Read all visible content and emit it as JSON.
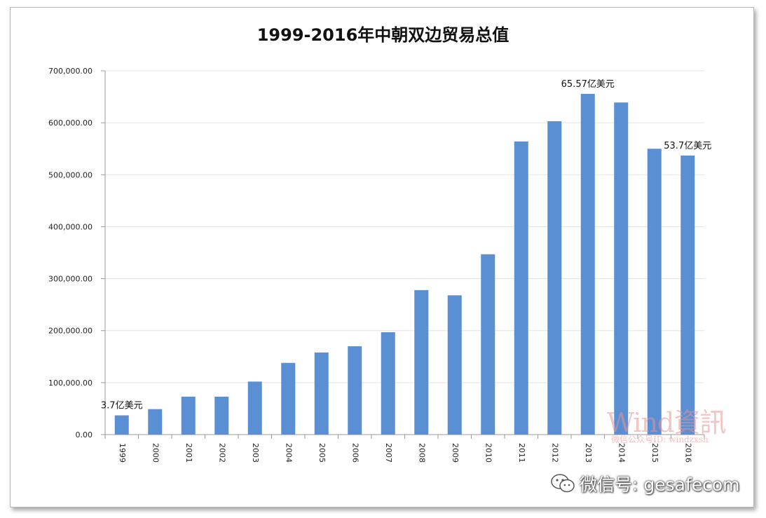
{
  "chart_data": {
    "type": "bar",
    "title": "1999-2016年中朝双边贸易总值",
    "categories": [
      "1999",
      "2000",
      "2001",
      "2002",
      "2003",
      "2004",
      "2005",
      "2006",
      "2007",
      "2008",
      "2009",
      "2010",
      "2011",
      "2012",
      "2013",
      "2014",
      "2015",
      "2016"
    ],
    "values": [
      37000,
      49000,
      73000,
      73000,
      102000,
      138000,
      158000,
      170000,
      197000,
      278000,
      268000,
      347000,
      564000,
      603000,
      655700,
      639000,
      550000,
      537000
    ],
    "ylim": [
      0,
      700000
    ],
    "yticks": [
      "0.00",
      "100,000.00",
      "200,000.00",
      "300,000.00",
      "400,000.00",
      "500,000.00",
      "600,000.00",
      "700,000.00"
    ],
    "grid": true,
    "bar_color": "#5b8fd3",
    "annotations": [
      {
        "index": 0,
        "text": "3.7亿美元"
      },
      {
        "index": 14,
        "text": "65.57亿美元"
      },
      {
        "index": 17,
        "text": "53.7亿美元"
      }
    ]
  },
  "watermark": {
    "brand": "Wind資訊",
    "sub": "微信公众号ID: windzxsh",
    "color": "#e89696"
  },
  "footer": {
    "wechat_label": "微信号: gesafecom",
    "icon": "wechat-icon"
  }
}
